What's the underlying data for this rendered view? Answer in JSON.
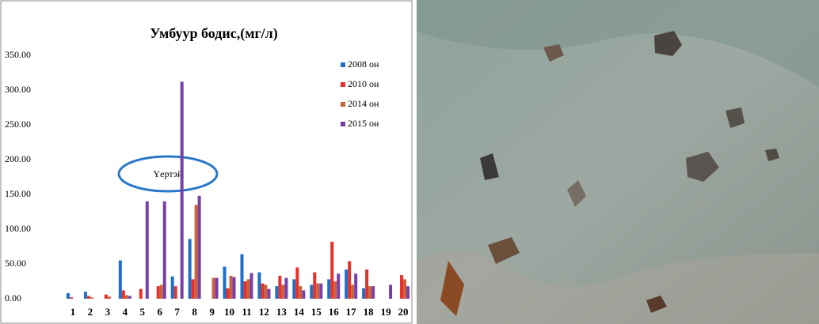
{
  "chart_data": {
    "type": "bar",
    "title": "Умбуур бодис,(мг/л)",
    "categories": [
      "1",
      "2",
      "3",
      "4",
      "5",
      "6",
      "7",
      "8",
      "9",
      "10",
      "11",
      "12",
      "13",
      "14",
      "15",
      "16",
      "17",
      "18",
      "19",
      "20"
    ],
    "series": [
      {
        "name": "2008 он",
        "color": "#1f6fc8",
        "values": [
          8,
          10,
          0,
          55,
          0,
          0,
          32,
          86,
          0,
          46,
          64,
          38,
          18,
          28,
          20,
          28,
          42,
          15,
          0,
          0
        ]
      },
      {
        "name": "2010 он",
        "color": "#e8302a",
        "values": [
          2,
          4,
          6,
          12,
          14,
          18,
          18,
          28,
          0,
          15,
          25,
          22,
          33,
          45,
          38,
          82,
          54,
          42,
          0,
          34
        ]
      },
      {
        "name": "2014 он",
        "color": "#c8643c",
        "values": [
          0,
          2,
          3,
          5,
          0,
          20,
          0,
          135,
          30,
          33,
          28,
          20,
          20,
          18,
          22,
          25,
          20,
          18,
          0,
          28
        ]
      },
      {
        "name": "2015 он",
        "color": "#7a3ea8",
        "values": [
          0,
          0,
          0,
          4,
          140,
          140,
          312,
          148,
          30,
          31,
          37,
          14,
          30,
          12,
          22,
          36,
          36,
          18,
          20,
          18
        ]
      }
    ],
    "ylim": [
      0,
      350
    ],
    "yticks": [
      {
        "value": 0,
        "label": "0.00"
      },
      {
        "value": 50,
        "label": "50.00"
      },
      {
        "value": 100,
        "label": "100.00"
      },
      {
        "value": 150,
        "label": "150.00"
      },
      {
        "value": 200,
        "label": "200.00"
      },
      {
        "value": 250,
        "label": "250.00"
      },
      {
        "value": 300,
        "label": "300.00"
      },
      {
        "value": 350,
        "label": "350.00"
      }
    ],
    "grid": false,
    "legend": "upper right",
    "annotation": "Үертэй"
  }
}
